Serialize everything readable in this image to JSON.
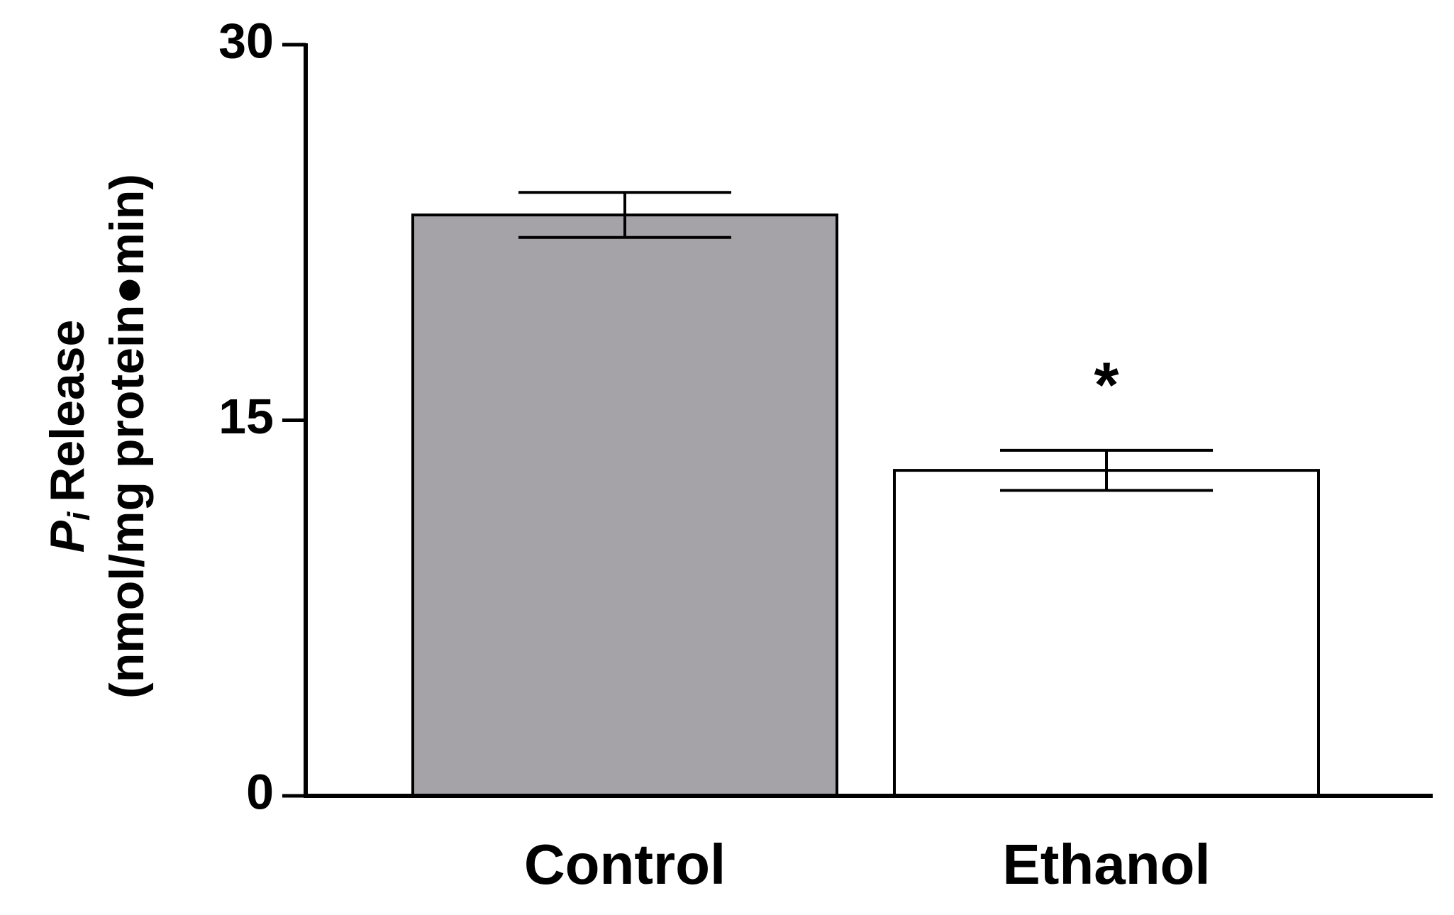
{
  "chart_data": {
    "type": "bar",
    "ylabel_symbol": "P",
    "ylabel_subscript": "i",
    "ylabel_line1": "Release",
    "ylabel_line2": "(nmol/mg protein●min)",
    "categories": [
      "Control",
      "Ethanol"
    ],
    "values": [
      23.2,
      13.0
    ],
    "errors": [
      0.9,
      0.8
    ],
    "colors": [
      "#a5a3a8",
      "#ffffff"
    ],
    "significance": [
      null,
      "*"
    ],
    "ylim": [
      0,
      30
    ],
    "yticks": [
      0,
      15,
      30
    ],
    "grid": false
  }
}
